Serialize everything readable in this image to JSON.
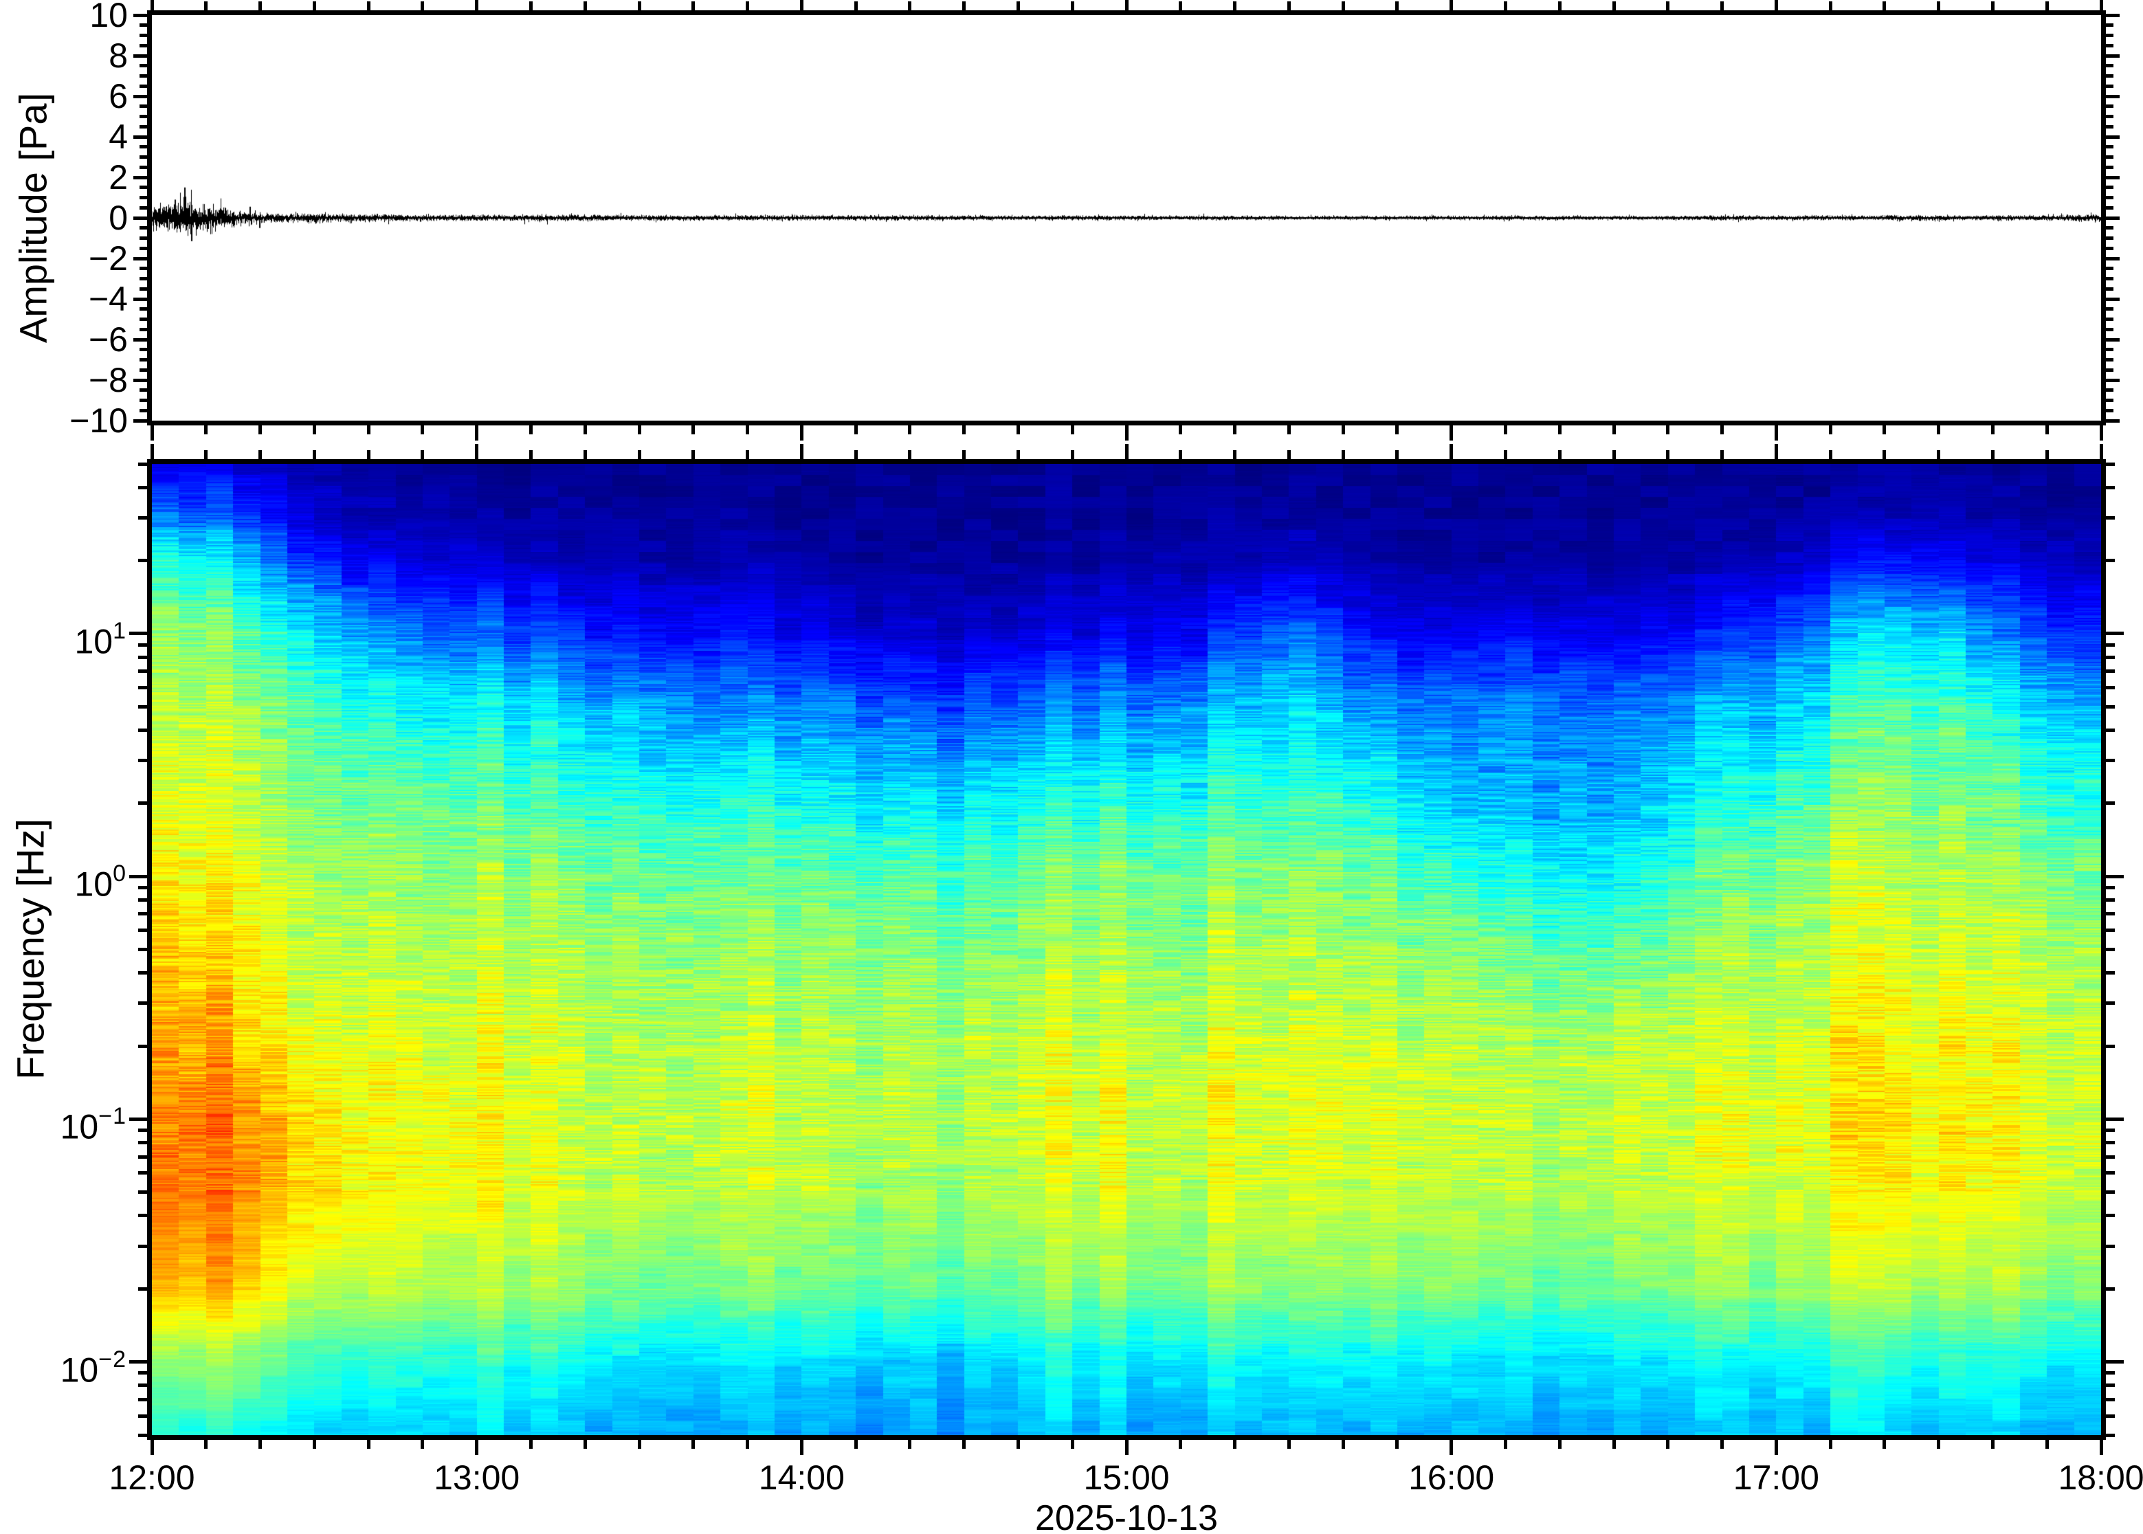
{
  "figure": {
    "background": "#ffffff",
    "foreground": "#000000"
  },
  "axes": {
    "time_tick_labels": [
      "12:00",
      "13:00",
      "14:00",
      "15:00",
      "16:00",
      "17:00",
      "18:00"
    ],
    "date_label": "2025-10-13"
  },
  "chart_data": [
    {
      "type": "line",
      "name": "infrasound-waveform",
      "ylabel": "Amplitude [Pa]",
      "ylim": [
        -10,
        10
      ],
      "ytick_step": 2,
      "yminor_step": 0.5,
      "ytick_labels": [
        "10",
        "8",
        "6",
        "4",
        "2",
        "0",
        "−2",
        "−4",
        "−6",
        "−8",
        "−10"
      ],
      "ytick_values": [
        10,
        8,
        6,
        4,
        2,
        0,
        -2,
        -4,
        -6,
        -8,
        -10
      ],
      "xtick_labels": [
        "12:00",
        "13:00",
        "14:00",
        "15:00",
        "16:00",
        "17:00",
        "18:00"
      ],
      "x_range_hours": [
        0,
        6
      ],
      "xminor_minutes": 10,
      "line_color": "#000000",
      "noise_envelope_pa": [
        [
          0,
          0.5
        ],
        [
          0.05,
          0.75
        ],
        [
          0.1,
          0.95
        ],
        [
          0.15,
          0.8
        ],
        [
          0.2,
          0.65
        ],
        [
          0.25,
          0.45
        ],
        [
          0.3,
          0.3
        ],
        [
          0.35,
          0.25
        ],
        [
          0.4,
          0.22
        ],
        [
          0.5,
          0.25
        ],
        [
          0.6,
          0.2
        ],
        [
          0.7,
          0.19
        ],
        [
          0.8,
          0.17
        ],
        [
          1.0,
          0.16
        ],
        [
          1.2,
          0.17
        ],
        [
          1.4,
          0.15
        ],
        [
          1.7,
          0.14
        ],
        [
          2.0,
          0.13
        ],
        [
          2.3,
          0.14
        ],
        [
          2.6,
          0.12
        ],
        [
          3.0,
          0.12
        ],
        [
          3.4,
          0.11
        ],
        [
          3.8,
          0.1
        ],
        [
          4.2,
          0.11
        ],
        [
          4.6,
          0.1
        ],
        [
          4.9,
          0.13
        ],
        [
          5.1,
          0.11
        ],
        [
          5.3,
          0.12
        ],
        [
          5.45,
          0.15
        ],
        [
          5.6,
          0.12
        ],
        [
          5.8,
          0.14
        ],
        [
          6,
          0.19
        ]
      ],
      "spikes_pa": [
        [
          0.1,
          1.5
        ],
        [
          0.12,
          -1.15
        ],
        [
          0.07,
          0.9
        ],
        [
          0.3,
          0.55
        ],
        [
          0.33,
          -0.5
        ]
      ]
    },
    {
      "type": "heatmap",
      "name": "spectrogram",
      "xlabel": "2025-10-13",
      "ylabel": "Frequency [Hz]",
      "yscale": "log",
      "freq_range_hz": [
        0.005,
        50
      ],
      "ytick_decades": [
        1,
        0,
        -1,
        -2
      ],
      "ytick_labels": [
        {
          "mant": "10",
          "exp": "1"
        },
        {
          "mant": "10",
          "exp": "0"
        },
        {
          "mant": "10",
          "exp": "−1"
        },
        {
          "mant": "10",
          "exp": "−2"
        }
      ],
      "xtick_labels": [
        "12:00",
        "13:00",
        "14:00",
        "15:00",
        "16:00",
        "17:00",
        "18:00"
      ],
      "x_range_hours": [
        0,
        6
      ],
      "colormap": "jet",
      "column_minutes": 5,
      "time_anchors_hours": [
        0,
        0.25,
        0.5,
        0.75,
        1,
        1.25,
        1.5,
        1.75,
        2,
        2.25,
        2.5,
        2.75,
        3,
        3.25,
        3.5,
        3.75,
        4,
        4.25,
        4.5,
        4.75,
        5,
        5.25,
        5.5,
        5.75,
        6
      ],
      "freq_anchors_hz": [
        50,
        30,
        20,
        10,
        5,
        2,
        1,
        0.5,
        0.2,
        0.1,
        0.05,
        0.02,
        0.01,
        0.005
      ],
      "values": [
        [
          0.1,
          0.09,
          0.05,
          0.03,
          0.02,
          0.02,
          0.02,
          0.02,
          0.02,
          0.02,
          0.02,
          0.02,
          0.02,
          0.02,
          0.02,
          0.02,
          0.02,
          0.02,
          0.02,
          0.02,
          0.02,
          0.02,
          0.03,
          0.02,
          0.02
        ],
        [
          0.25,
          0.22,
          0.1,
          0.05,
          0.04,
          0.03,
          0.03,
          0.03,
          0.02,
          0.02,
          0.02,
          0.02,
          0.02,
          0.03,
          0.04,
          0.02,
          0.02,
          0.02,
          0.02,
          0.02,
          0.03,
          0.05,
          0.06,
          0.04,
          0.03
        ],
        [
          0.4,
          0.36,
          0.2,
          0.1,
          0.08,
          0.06,
          0.05,
          0.05,
          0.04,
          0.03,
          0.03,
          0.03,
          0.04,
          0.05,
          0.08,
          0.04,
          0.03,
          0.04,
          0.03,
          0.04,
          0.06,
          0.12,
          0.14,
          0.08,
          0.07
        ],
        [
          0.52,
          0.5,
          0.38,
          0.26,
          0.22,
          0.18,
          0.16,
          0.14,
          0.12,
          0.09,
          0.08,
          0.09,
          0.11,
          0.15,
          0.25,
          0.13,
          0.1,
          0.13,
          0.1,
          0.13,
          0.2,
          0.32,
          0.35,
          0.22,
          0.18
        ],
        [
          0.56,
          0.55,
          0.48,
          0.4,
          0.37,
          0.34,
          0.31,
          0.28,
          0.26,
          0.23,
          0.21,
          0.23,
          0.26,
          0.3,
          0.37,
          0.28,
          0.23,
          0.26,
          0.23,
          0.27,
          0.32,
          0.43,
          0.46,
          0.36,
          0.32
        ],
        [
          0.6,
          0.59,
          0.53,
          0.49,
          0.47,
          0.45,
          0.43,
          0.41,
          0.4,
          0.38,
          0.37,
          0.38,
          0.41,
          0.43,
          0.46,
          0.41,
          0.33,
          0.3,
          0.29,
          0.37,
          0.43,
          0.5,
          0.52,
          0.46,
          0.43
        ],
        [
          0.63,
          0.62,
          0.57,
          0.53,
          0.52,
          0.51,
          0.5,
          0.49,
          0.48,
          0.47,
          0.46,
          0.47,
          0.49,
          0.51,
          0.53,
          0.49,
          0.43,
          0.39,
          0.37,
          0.45,
          0.51,
          0.55,
          0.56,
          0.53,
          0.51
        ],
        [
          0.66,
          0.65,
          0.59,
          0.57,
          0.56,
          0.55,
          0.54,
          0.53,
          0.53,
          0.52,
          0.51,
          0.52,
          0.53,
          0.54,
          0.56,
          0.54,
          0.51,
          0.47,
          0.46,
          0.51,
          0.54,
          0.58,
          0.58,
          0.56,
          0.55
        ],
        [
          0.71,
          0.71,
          0.63,
          0.6,
          0.59,
          0.58,
          0.57,
          0.57,
          0.56,
          0.56,
          0.56,
          0.56,
          0.57,
          0.58,
          0.6,
          0.58,
          0.56,
          0.55,
          0.55,
          0.57,
          0.58,
          0.62,
          0.63,
          0.6,
          0.59
        ],
        [
          0.74,
          0.76,
          0.67,
          0.63,
          0.61,
          0.59,
          0.58,
          0.58,
          0.57,
          0.57,
          0.56,
          0.57,
          0.58,
          0.6,
          0.61,
          0.6,
          0.58,
          0.56,
          0.56,
          0.58,
          0.6,
          0.63,
          0.65,
          0.61,
          0.6
        ],
        [
          0.75,
          0.76,
          0.68,
          0.63,
          0.61,
          0.59,
          0.58,
          0.57,
          0.56,
          0.55,
          0.55,
          0.56,
          0.57,
          0.58,
          0.59,
          0.58,
          0.56,
          0.55,
          0.55,
          0.57,
          0.58,
          0.61,
          0.63,
          0.6,
          0.58
        ],
        [
          0.68,
          0.7,
          0.6,
          0.57,
          0.55,
          0.53,
          0.51,
          0.5,
          0.49,
          0.48,
          0.48,
          0.49,
          0.5,
          0.52,
          0.53,
          0.52,
          0.5,
          0.48,
          0.48,
          0.5,
          0.52,
          0.55,
          0.55,
          0.53,
          0.52
        ],
        [
          0.5,
          0.53,
          0.46,
          0.43,
          0.41,
          0.39,
          0.37,
          0.36,
          0.35,
          0.34,
          0.34,
          0.36,
          0.36,
          0.38,
          0.39,
          0.38,
          0.36,
          0.35,
          0.35,
          0.36,
          0.38,
          0.41,
          0.41,
          0.39,
          0.38
        ],
        [
          0.4,
          0.42,
          0.36,
          0.34,
          0.33,
          0.32,
          0.31,
          0.3,
          0.29,
          0.28,
          0.29,
          0.3,
          0.3,
          0.31,
          0.32,
          0.31,
          0.3,
          0.29,
          0.29,
          0.3,
          0.31,
          0.33,
          0.33,
          0.32,
          0.31
        ]
      ]
    }
  ]
}
